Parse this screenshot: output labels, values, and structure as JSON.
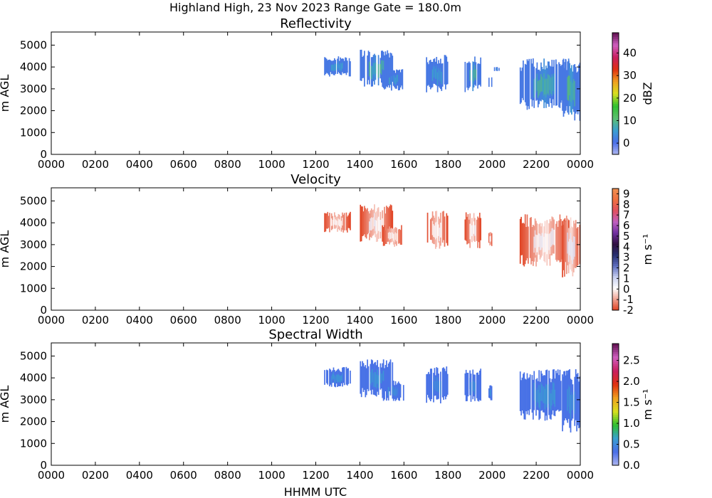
{
  "figure": {
    "title": "Highland High, 23 Nov 2023 Range Gate = 180.0m",
    "xlabel": "HHMM UTC"
  },
  "chart_data": [
    {
      "type": "heatmap",
      "title": "Reflectivity",
      "xlabel": "",
      "ylabel": "m AGL",
      "xlim_hours": [
        0,
        24
      ],
      "xticks": [
        "0000",
        "0200",
        "0400",
        "0600",
        "0800",
        "1000",
        "1200",
        "1400",
        "1600",
        "1800",
        "2000",
        "2200",
        "0000"
      ],
      "ylim": [
        0,
        5600
      ],
      "yticks": [
        0,
        1000,
        2000,
        3000,
        4000,
        5000
      ],
      "colorbar": {
        "label": "dBZ",
        "range": [
          -5,
          49
        ],
        "ticks": [
          0,
          10,
          20,
          30,
          40
        ],
        "palette": [
          "#b0b8f0",
          "#4a6ee8",
          "#3aa0d0",
          "#5cc070",
          "#30c030",
          "#d8e020",
          "#f0a020",
          "#e03010",
          "#c82060",
          "#d060c0",
          "#601050"
        ]
      },
      "echoes": [
        {
          "start": "1220",
          "end": "1335",
          "base_m": 3550,
          "top_m": 4500,
          "peak": 2
        },
        {
          "start": "1400",
          "end": "1530",
          "base_m": 3100,
          "top_m": 4850,
          "peak": 10
        },
        {
          "start": "1500",
          "end": "1600",
          "base_m": 2900,
          "top_m": 3900,
          "peak": 3
        },
        {
          "start": "1700",
          "end": "1800",
          "base_m": 2800,
          "top_m": 4550,
          "peak": 5
        },
        {
          "start": "1845",
          "end": "1930",
          "base_m": 2800,
          "top_m": 4500,
          "peak": 10
        },
        {
          "start": "1950",
          "end": "2000",
          "base_m": 2900,
          "top_m": 3700,
          "peak": 2
        },
        {
          "start": "2005",
          "end": "2020",
          "base_m": 3800,
          "top_m": 4000,
          "peak": 1
        },
        {
          "start": "2115",
          "end": "2330",
          "base_m": 2000,
          "top_m": 4400,
          "peak": 10
        },
        {
          "start": "2310",
          "end": "2400",
          "base_m": 1500,
          "top_m": 4400,
          "peak": 12
        }
      ]
    },
    {
      "type": "heatmap",
      "title": "Velocity",
      "xlabel": "",
      "ylabel": "m AGL",
      "xlim_hours": [
        0,
        24
      ],
      "xticks": [
        "0000",
        "0200",
        "0400",
        "0600",
        "0800",
        "1000",
        "1200",
        "1400",
        "1600",
        "1800",
        "2000",
        "2200",
        "0000"
      ],
      "ylim": [
        0,
        5600
      ],
      "yticks": [
        0,
        1000,
        2000,
        3000,
        4000,
        5000
      ],
      "colorbar": {
        "label": "m s⁻¹",
        "range": [
          -2,
          9.5
        ],
        "ticks": [
          -2,
          -1,
          0,
          1,
          2,
          3,
          4,
          5,
          6,
          7,
          8,
          9
        ],
        "palette": [
          "#e04020",
          "#f0a090",
          "#ffffff",
          "#c8d0f0",
          "#6070c0",
          "#283070",
          "#301040",
          "#7030a0",
          "#c060c0",
          "#e05060",
          "#f07040",
          "#f09050"
        ]
      },
      "echoes": [
        {
          "start": "1220",
          "end": "1335",
          "base_m": 3550,
          "top_m": 4500,
          "peak": 0.4
        },
        {
          "start": "1400",
          "end": "1530",
          "base_m": 3100,
          "top_m": 4850,
          "peak": 0.6
        },
        {
          "start": "1500",
          "end": "1600",
          "base_m": 2900,
          "top_m": 3900,
          "peak": 0.5
        },
        {
          "start": "1700",
          "end": "1800",
          "base_m": 2800,
          "top_m": 4550,
          "peak": 0.5
        },
        {
          "start": "1845",
          "end": "1930",
          "base_m": 2800,
          "top_m": 4500,
          "peak": 0.5
        },
        {
          "start": "1950",
          "end": "2000",
          "base_m": 2900,
          "top_m": 3700,
          "peak": 0.4
        },
        {
          "start": "2115",
          "end": "2330",
          "base_m": 2000,
          "top_m": 4400,
          "peak": 0.7
        },
        {
          "start": "2310",
          "end": "2400",
          "base_m": 1500,
          "top_m": 4400,
          "peak": 0.9
        }
      ]
    },
    {
      "type": "heatmap",
      "title": "Spectral Width",
      "xlabel": "HHMM UTC",
      "ylabel": "m AGL",
      "xlim_hours": [
        0,
        24
      ],
      "xticks": [
        "0000",
        "0200",
        "0400",
        "0600",
        "0800",
        "1000",
        "1200",
        "1400",
        "1600",
        "1800",
        "2000",
        "2200",
        "0000"
      ],
      "ylim": [
        0,
        5600
      ],
      "yticks": [
        0,
        1000,
        2000,
        3000,
        4000,
        5000
      ],
      "colorbar": {
        "label": "m s⁻¹",
        "range": [
          0,
          2.9
        ],
        "ticks": [
          0.0,
          0.5,
          1.0,
          1.5,
          2.0,
          2.5
        ],
        "palette": [
          "#b0b8f0",
          "#4a6ee8",
          "#3aa0d0",
          "#30c030",
          "#d8e020",
          "#f0a020",
          "#e03010",
          "#c82060",
          "#d060c0",
          "#601050"
        ],
        "tick_labels": [
          "0.0",
          "0.5",
          "1.0",
          "1.5",
          "2.0",
          "2.5"
        ]
      },
      "echoes": [
        {
          "start": "1220",
          "end": "1335",
          "base_m": 3550,
          "top_m": 4500,
          "peak": 0.35
        },
        {
          "start": "1400",
          "end": "1530",
          "base_m": 3100,
          "top_m": 4850,
          "peak": 0.6
        },
        {
          "start": "1500",
          "end": "1600",
          "base_m": 2900,
          "top_m": 3900,
          "peak": 0.35
        },
        {
          "start": "1700",
          "end": "1800",
          "base_m": 2800,
          "top_m": 4550,
          "peak": 0.35
        },
        {
          "start": "1845",
          "end": "1930",
          "base_m": 2800,
          "top_m": 4500,
          "peak": 0.35
        },
        {
          "start": "1950",
          "end": "2000",
          "base_m": 2900,
          "top_m": 3700,
          "peak": 0.3
        },
        {
          "start": "2115",
          "end": "2330",
          "base_m": 2000,
          "top_m": 4400,
          "peak": 0.4
        },
        {
          "start": "2310",
          "end": "2400",
          "base_m": 1500,
          "top_m": 4400,
          "peak": 0.5
        }
      ]
    }
  ]
}
